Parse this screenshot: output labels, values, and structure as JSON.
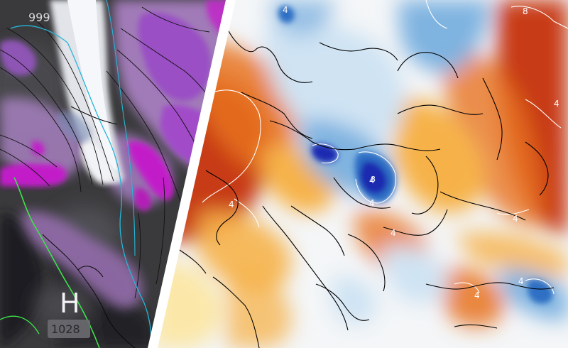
{
  "left_panel": {
    "pressure_top": "999",
    "high_letter": "H",
    "high_pressure": "1028",
    "colors": {
      "land_dark": "#3a3a3c",
      "land_mid": "#55555a",
      "sea": "#1f1f22",
      "precip_light": "#a77fbf",
      "precip_mid": "#9a4fc4",
      "precip_heavy": "#c21fc9",
      "snow": "#eef0f4",
      "isotherm_cyan": "#27b6d8",
      "isotherm_green": "#3ee34a",
      "isobar": "#111111"
    }
  },
  "right_panel": {
    "contour_labels": [
      "4",
      "8",
      "4",
      "8",
      "4",
      "4",
      "4",
      "4",
      "4",
      "4",
      "4"
    ],
    "colors": {
      "warm_deep": "#c73a12",
      "warm_mid": "#e8731f",
      "warm_light": "#f6b24a",
      "pale_yellow": "#fbe7a8",
      "neutral": "#f4f6f8",
      "cool_light": "#cfe3f3",
      "cool_mid": "#7fb3e0",
      "cool_deep": "#2e6fc4",
      "cold_core": "#1b2bb0",
      "coast": "#000000",
      "contour": "#ffffff"
    }
  }
}
